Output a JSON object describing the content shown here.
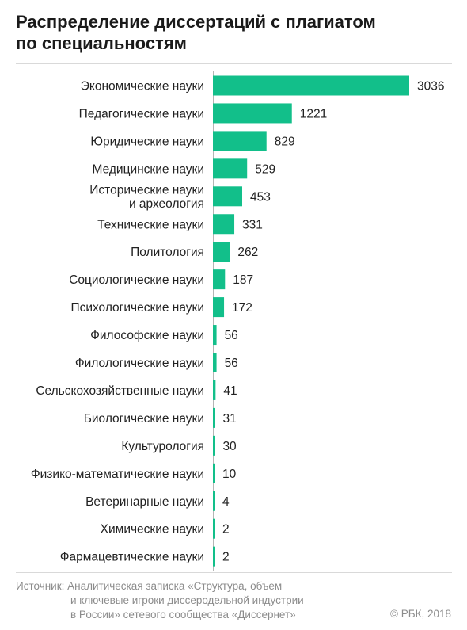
{
  "title_line1": "Распределение диссертаций с плагиатом",
  "title_line2": "по специальностям",
  "chart_data": {
    "type": "bar",
    "orientation": "horizontal",
    "categories": [
      [
        "Экономические науки"
      ],
      [
        "Педагогические науки"
      ],
      [
        "Юридические науки"
      ],
      [
        "Медицинские науки"
      ],
      [
        "Исторические науки",
        "и археология"
      ],
      [
        "Технические науки"
      ],
      [
        "Политология"
      ],
      [
        "Социологические науки"
      ],
      [
        "Психологические науки"
      ],
      [
        "Философские науки"
      ],
      [
        "Филологические науки"
      ],
      [
        "Сельскохозяйственные науки"
      ],
      [
        "Биологические науки"
      ],
      [
        "Культурология"
      ],
      [
        "Физико-математические науки"
      ],
      [
        "Ветеринарные науки"
      ],
      [
        "Химические науки"
      ],
      [
        "Фармацевтические науки"
      ]
    ],
    "values": [
      3036,
      1221,
      829,
      529,
      453,
      331,
      262,
      187,
      172,
      56,
      56,
      41,
      31,
      30,
      10,
      4,
      2,
      2
    ],
    "bar_color": "#12bf8a"
  },
  "source_prefix": "Источник:",
  "source_line1": "Аналитическая записка «Структура, объем",
  "source_line2": "и ключевые игроки диссеродельной индустрии",
  "source_line3": "в России» сетевого сообщества «Диссернет»",
  "credit": "© РБК, 2018"
}
